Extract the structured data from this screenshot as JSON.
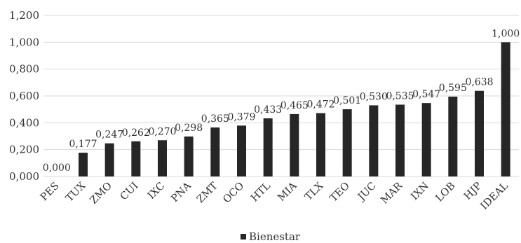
{
  "chart_data": {
    "type": "bar",
    "categories": [
      "PES",
      "TUX",
      "ZMO",
      "CUI",
      "IXC",
      "PNA",
      "ZMT",
      "OCO",
      "HTL",
      "MIA",
      "TLX",
      "TEO",
      "JUC",
      "MAR",
      "IXN",
      "LOB",
      "HJP",
      "IDEAL"
    ],
    "series": [
      {
        "name": "Bienestar",
        "values": [
          0.0,
          0.177,
          0.247,
          0.262,
          0.27,
          0.298,
          0.365,
          0.379,
          0.433,
          0.465,
          0.472,
          0.501,
          0.53,
          0.535,
          0.547,
          0.595,
          0.638,
          1.0
        ],
        "labels": [
          "0,000",
          "0,177",
          "0,247",
          "0,262",
          "0,270",
          "0,298",
          "0,365",
          "0,379",
          "0,433",
          "0,465",
          "0,472",
          "0,501",
          "0,530",
          "0,535",
          "0,547",
          "0,595",
          "0,638",
          "1,000"
        ]
      }
    ],
    "ylim": [
      0,
      1.2
    ],
    "yticks": [
      0,
      0.2,
      0.4,
      0.6,
      0.8,
      1.0,
      1.2
    ],
    "ytick_labels": [
      "0,000",
      "0,200",
      "0,400",
      "0,600",
      "0,800",
      "1,000",
      "1,200"
    ],
    "xlabel": "",
    "ylabel": "",
    "title": "",
    "grid": true,
    "legend_position": "bottom-center",
    "colors": {
      "bar": "#262626",
      "grid": "#d9d9d9",
      "text": "#333333"
    }
  }
}
